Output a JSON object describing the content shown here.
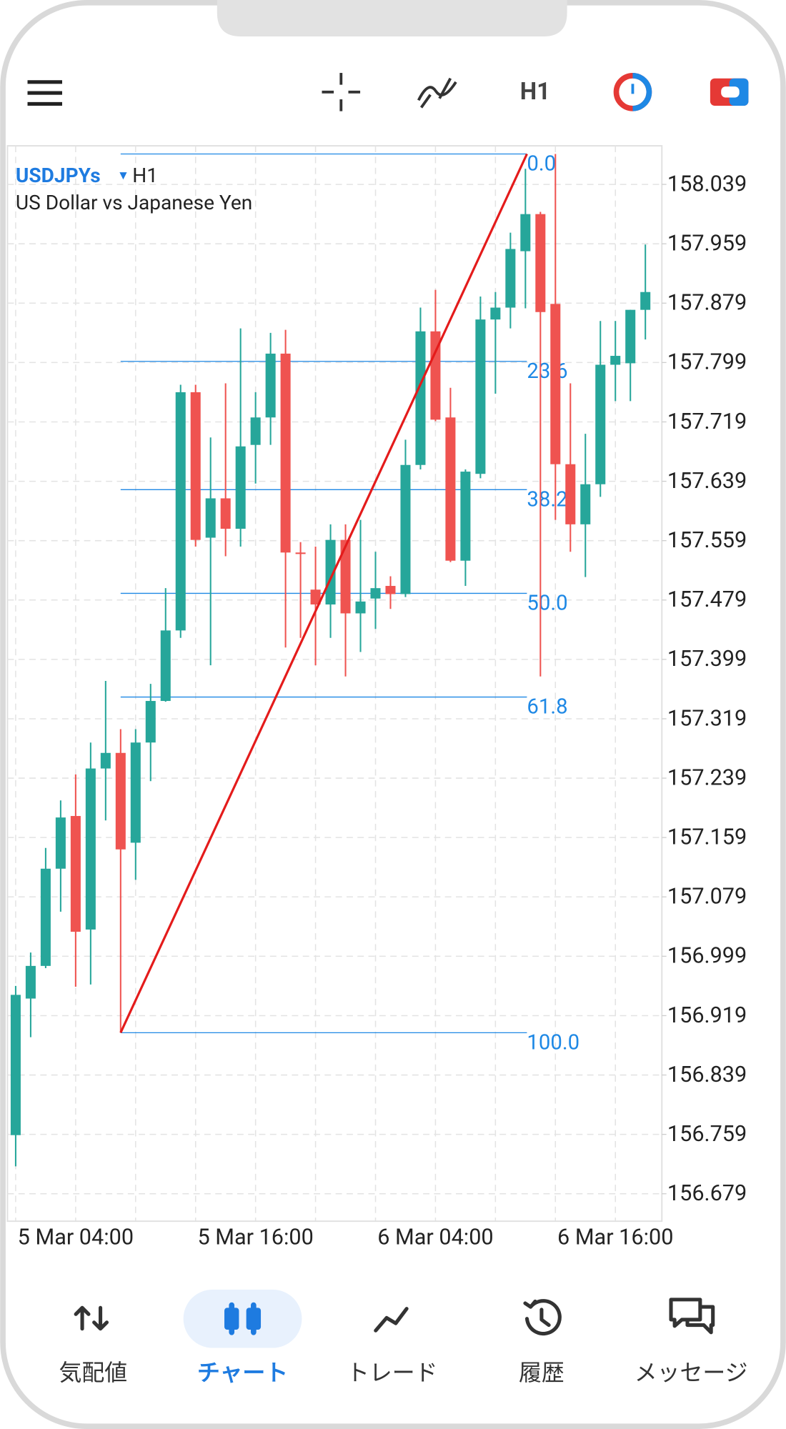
{
  "toolbar": {
    "timeframe": "H1"
  },
  "chart_data": {
    "type": "candlestick",
    "symbol": "USDJPYs",
    "timeframe": "H1",
    "description": "US Dollar vs Japanese Yen",
    "categories": [
      null,
      null,
      null,
      null,
      "5 Mar 04:00",
      null,
      null,
      null,
      null,
      null,
      null,
      null,
      null,
      null,
      null,
      null,
      "5 Mar 16:00",
      null,
      null,
      null,
      null,
      null,
      null,
      null,
      null,
      null,
      null,
      null,
      "6 Mar 04:00",
      null,
      null,
      null,
      null,
      null,
      null,
      null,
      null,
      null,
      null,
      null,
      "6 Mar 16:00",
      null,
      null
    ],
    "open": [
      156.758,
      156.942,
      156.986,
      157.117,
      157.188,
      157.035,
      157.252,
      157.273,
      157.152,
      157.287,
      157.343,
      157.438,
      157.759,
      157.563,
      157.616,
      157.575,
      157.688,
      157.725,
      157.811,
      157.543,
      157.493,
      157.473,
      157.56,
      157.461,
      157.481,
      157.498,
      157.487,
      157.661,
      157.841,
      157.725,
      157.532,
      157.649,
      157.857,
      157.873,
      157.949,
      157.999,
      157.878,
      157.662,
      157.581,
      157.635,
      157.796,
      157.798,
      157.87
    ],
    "high": [
      156.959,
      157.004,
      157.145,
      157.209,
      157.244,
      157.287,
      157.37,
      157.305,
      157.305,
      157.366,
      157.495,
      157.769,
      157.769,
      157.698,
      157.771,
      157.845,
      157.759,
      157.839,
      157.843,
      157.557,
      157.551,
      157.581,
      157.581,
      157.587,
      157.544,
      157.511,
      157.695,
      157.873,
      157.897,
      157.765,
      157.655,
      157.888,
      157.894,
      157.974,
      158.06,
      158.002,
      158.08,
      157.771,
      157.703,
      157.855,
      157.855,
      157.87,
      157.958
    ],
    "low": [
      156.716,
      156.89,
      156.983,
      157.059,
      156.958,
      156.961,
      157.182,
      156.896,
      157.102,
      157.235,
      157.342,
      157.428,
      157.551,
      157.391,
      157.538,
      157.551,
      157.636,
      157.688,
      157.415,
      157.428,
      157.391,
      157.428,
      157.376,
      157.409,
      157.44,
      157.467,
      157.483,
      157.655,
      157.72,
      157.53,
      157.498,
      157.643,
      157.757,
      157.845,
      157.872,
      157.376,
      157.587,
      157.544,
      157.51,
      157.618,
      157.747,
      157.747,
      157.83
    ],
    "close": [
      156.947,
      156.986,
      157.117,
      157.186,
      157.032,
      157.252,
      157.273,
      157.143,
      157.287,
      157.343,
      157.438,
      157.759,
      157.56,
      157.616,
      157.575,
      157.686,
      157.725,
      157.811,
      157.543,
      157.541,
      157.473,
      157.56,
      157.461,
      157.477,
      157.495,
      157.487,
      157.661,
      157.841,
      157.722,
      157.532,
      157.652,
      157.857,
      157.873,
      157.952,
      157.999,
      157.867,
      157.662,
      157.581,
      157.635,
      157.796,
      157.808,
      157.87,
      157.894
    ],
    "up_color": "#26a69a",
    "down_color": "#ef5350",
    "ylim": [
      156.642,
      158.091
    ],
    "yticks": [
      158.039,
      157.959,
      157.879,
      157.799,
      157.719,
      157.639,
      157.559,
      157.479,
      157.399,
      157.319,
      157.239,
      157.159,
      157.079,
      156.999,
      156.919,
      156.839,
      156.759,
      156.679
    ],
    "grid": true,
    "fibonacci": {
      "from": {
        "index": 7,
        "price": 156.896
      },
      "to": {
        "index": 34.1,
        "price": 158.08
      },
      "trend_color": "#e41b1b",
      "level_color": "#1e88e5",
      "levels": [
        {
          "value": 0,
          "label": "0.0"
        },
        23.6,
        38.2,
        {
          "value": 50,
          "label": "50.0"
        },
        61.8,
        {
          "value": 100,
          "label": "100.0"
        }
      ]
    }
  },
  "nav": {
    "items": [
      "気配値",
      "チャート",
      "トレード",
      "履歴",
      "メッセージ"
    ],
    "active": 1
  }
}
